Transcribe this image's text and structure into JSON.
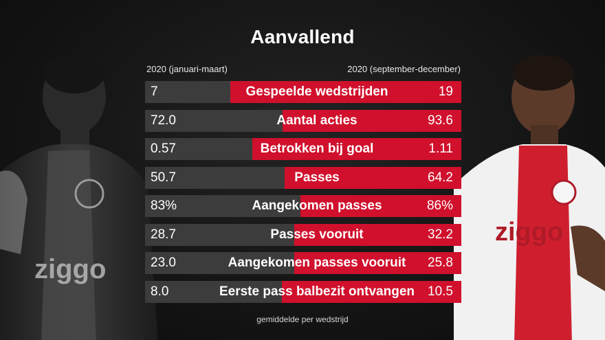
{
  "title": "Aanvallend",
  "period_left": "2020 (januari-maart)",
  "period_right": "2020 (september-december)",
  "footnote": "gemiddelde per wedstrijd",
  "colors": {
    "left_bar": "#3c3c3c",
    "right_bar": "#d0102c",
    "background": "#141414"
  },
  "chart_data": {
    "type": "bar",
    "orientation": "horizontal-comparison",
    "title": "Aanvallend",
    "series": [
      {
        "name": "2020 (januari-maart)",
        "values": [
          7,
          72.0,
          0.57,
          50.7,
          83,
          28.7,
          23.0,
          8.0
        ]
      },
      {
        "name": "2020 (september-december)",
        "values": [
          19,
          93.6,
          1.11,
          64.2,
          86,
          32.2,
          25.8,
          10.5
        ]
      }
    ],
    "categories": [
      "Gespeelde wedstrijden",
      "Aantal acties",
      "Betrokken bij goal",
      "Passes",
      "Aangekomen passes",
      "Passes vooruit",
      "Aangekomen passes vooruit",
      "Eerste pass balbezit ontvangen"
    ],
    "left_labels": [
      "7",
      "72.0",
      "0.57",
      "50.7",
      "83%",
      "28.7",
      "23.0",
      "8.0"
    ],
    "right_labels": [
      "19",
      "93.6",
      "1.11",
      "64.2",
      "86%",
      "32.2",
      "25.8",
      "10.5"
    ]
  }
}
